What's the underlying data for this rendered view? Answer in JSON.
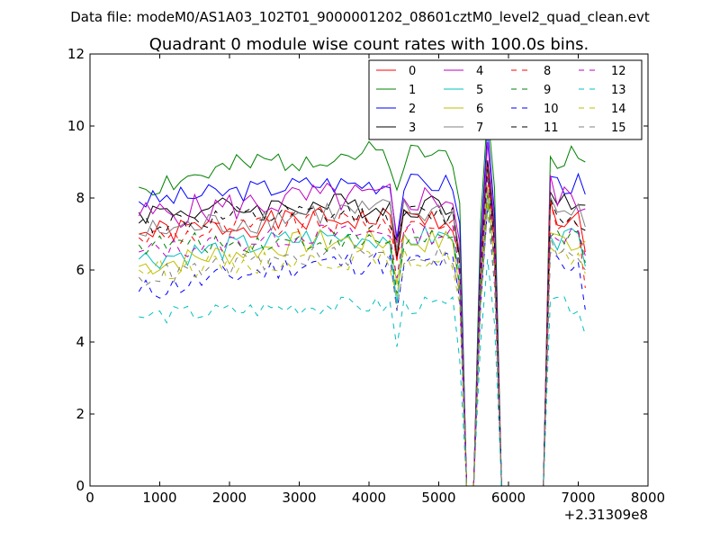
{
  "chart_data": {
    "type": "line",
    "suptitle": "Data file: modeM0/AS1A03_102T01_9000001202_08601cztM0_level2_quad_clean.evt",
    "title": "Quadrant 0 module wise count rates with 100.0s bins.",
    "xlabel": "",
    "ylabel": "",
    "x_offset_label": "+2.31309e8",
    "xlim": [
      0,
      8000
    ],
    "ylim": [
      0,
      12
    ],
    "xticks": [
      0,
      1000,
      2000,
      3000,
      4000,
      5000,
      6000,
      7000,
      8000
    ],
    "yticks": [
      0,
      2,
      4,
      6,
      8,
      10,
      12
    ],
    "xtick_labels": [
      "0",
      "1000",
      "2000",
      "3000",
      "4000",
      "5000",
      "6000",
      "7000",
      "8000"
    ],
    "ytick_labels": [
      "0",
      "2",
      "4",
      "6",
      "8",
      "10",
      "12"
    ],
    "legend_position": "top-right",
    "x_start": 700,
    "x_step": 100,
    "x_end": 7150,
    "series": [
      {
        "name": "0",
        "color": "#ff0000",
        "dash": "solid",
        "start": 7.0,
        "mean": 7.4,
        "end": 6.5,
        "amp": 0.35,
        "seed": 1
      },
      {
        "name": "1",
        "color": "#008000",
        "dash": "solid",
        "start": 8.3,
        "mean": 9.2,
        "end": 9.0,
        "amp": 0.4,
        "seed": 2
      },
      {
        "name": "2",
        "color": "#0000ff",
        "dash": "solid",
        "start": 7.9,
        "mean": 8.4,
        "end": 8.1,
        "amp": 0.3,
        "seed": 3
      },
      {
        "name": "3",
        "color": "#000000",
        "dash": "solid",
        "start": 7.6,
        "mean": 7.8,
        "end": 7.8,
        "amp": 0.35,
        "seed": 4
      },
      {
        "name": "4",
        "color": "#bf00bf",
        "dash": "solid",
        "start": 7.5,
        "mean": 8.0,
        "end": 7.7,
        "amp": 0.45,
        "seed": 5
      },
      {
        "name": "5",
        "color": "#00bfbf",
        "dash": "solid",
        "start": 6.3,
        "mean": 6.9,
        "end": 6.1,
        "amp": 0.35,
        "seed": 6
      },
      {
        "name": "6",
        "color": "#bfbf00",
        "dash": "solid",
        "start": 6.1,
        "mean": 6.8,
        "end": 6.8,
        "amp": 0.35,
        "seed": 7
      },
      {
        "name": "7",
        "color": "#808080",
        "dash": "solid",
        "start": 7.0,
        "mean": 7.6,
        "end": 7.2,
        "amp": 0.4,
        "seed": 8
      },
      {
        "name": "8",
        "color": "#ff0000",
        "dash": "dashed",
        "start": 6.9,
        "mean": 7.3,
        "end": 5.5,
        "amp": 0.35,
        "seed": 9
      },
      {
        "name": "9",
        "color": "#008000",
        "dash": "dashed",
        "start": 6.7,
        "mean": 6.8,
        "end": 6.2,
        "amp": 0.3,
        "seed": 10
      },
      {
        "name": "10",
        "color": "#0000ff",
        "dash": "dashed",
        "start": 5.4,
        "mean": 6.2,
        "end": 4.9,
        "amp": 0.35,
        "seed": 11
      },
      {
        "name": "11",
        "color": "#000000",
        "dash": "dashed",
        "start": 7.3,
        "mean": 7.5,
        "end": 7.1,
        "amp": 0.35,
        "seed": 12
      },
      {
        "name": "12",
        "color": "#bf00bf",
        "dash": "dashed",
        "start": 6.5,
        "mean": 7.0,
        "end": 6.4,
        "amp": 0.3,
        "seed": 13
      },
      {
        "name": "13",
        "color": "#00bfbf",
        "dash": "dashed",
        "start": 4.7,
        "mean": 5.0,
        "end": 4.2,
        "amp": 0.25,
        "seed": 14
      },
      {
        "name": "14",
        "color": "#bfbf00",
        "dash": "dashed",
        "start": 6.0,
        "mean": 6.3,
        "end": 5.9,
        "amp": 0.3,
        "seed": 15
      },
      {
        "name": "15",
        "color": "#808080",
        "dash": "dashed",
        "start": 5.8,
        "mean": 6.4,
        "end": 6.0,
        "amp": 0.3,
        "seed": 16
      }
    ],
    "gap_profile": {
      "drop_start": 5300,
      "zero1": [
        5400,
        5500
      ],
      "peak_x": 5700,
      "zero2": [
        5900,
        6500
      ],
      "resume_x": 6600
    }
  }
}
